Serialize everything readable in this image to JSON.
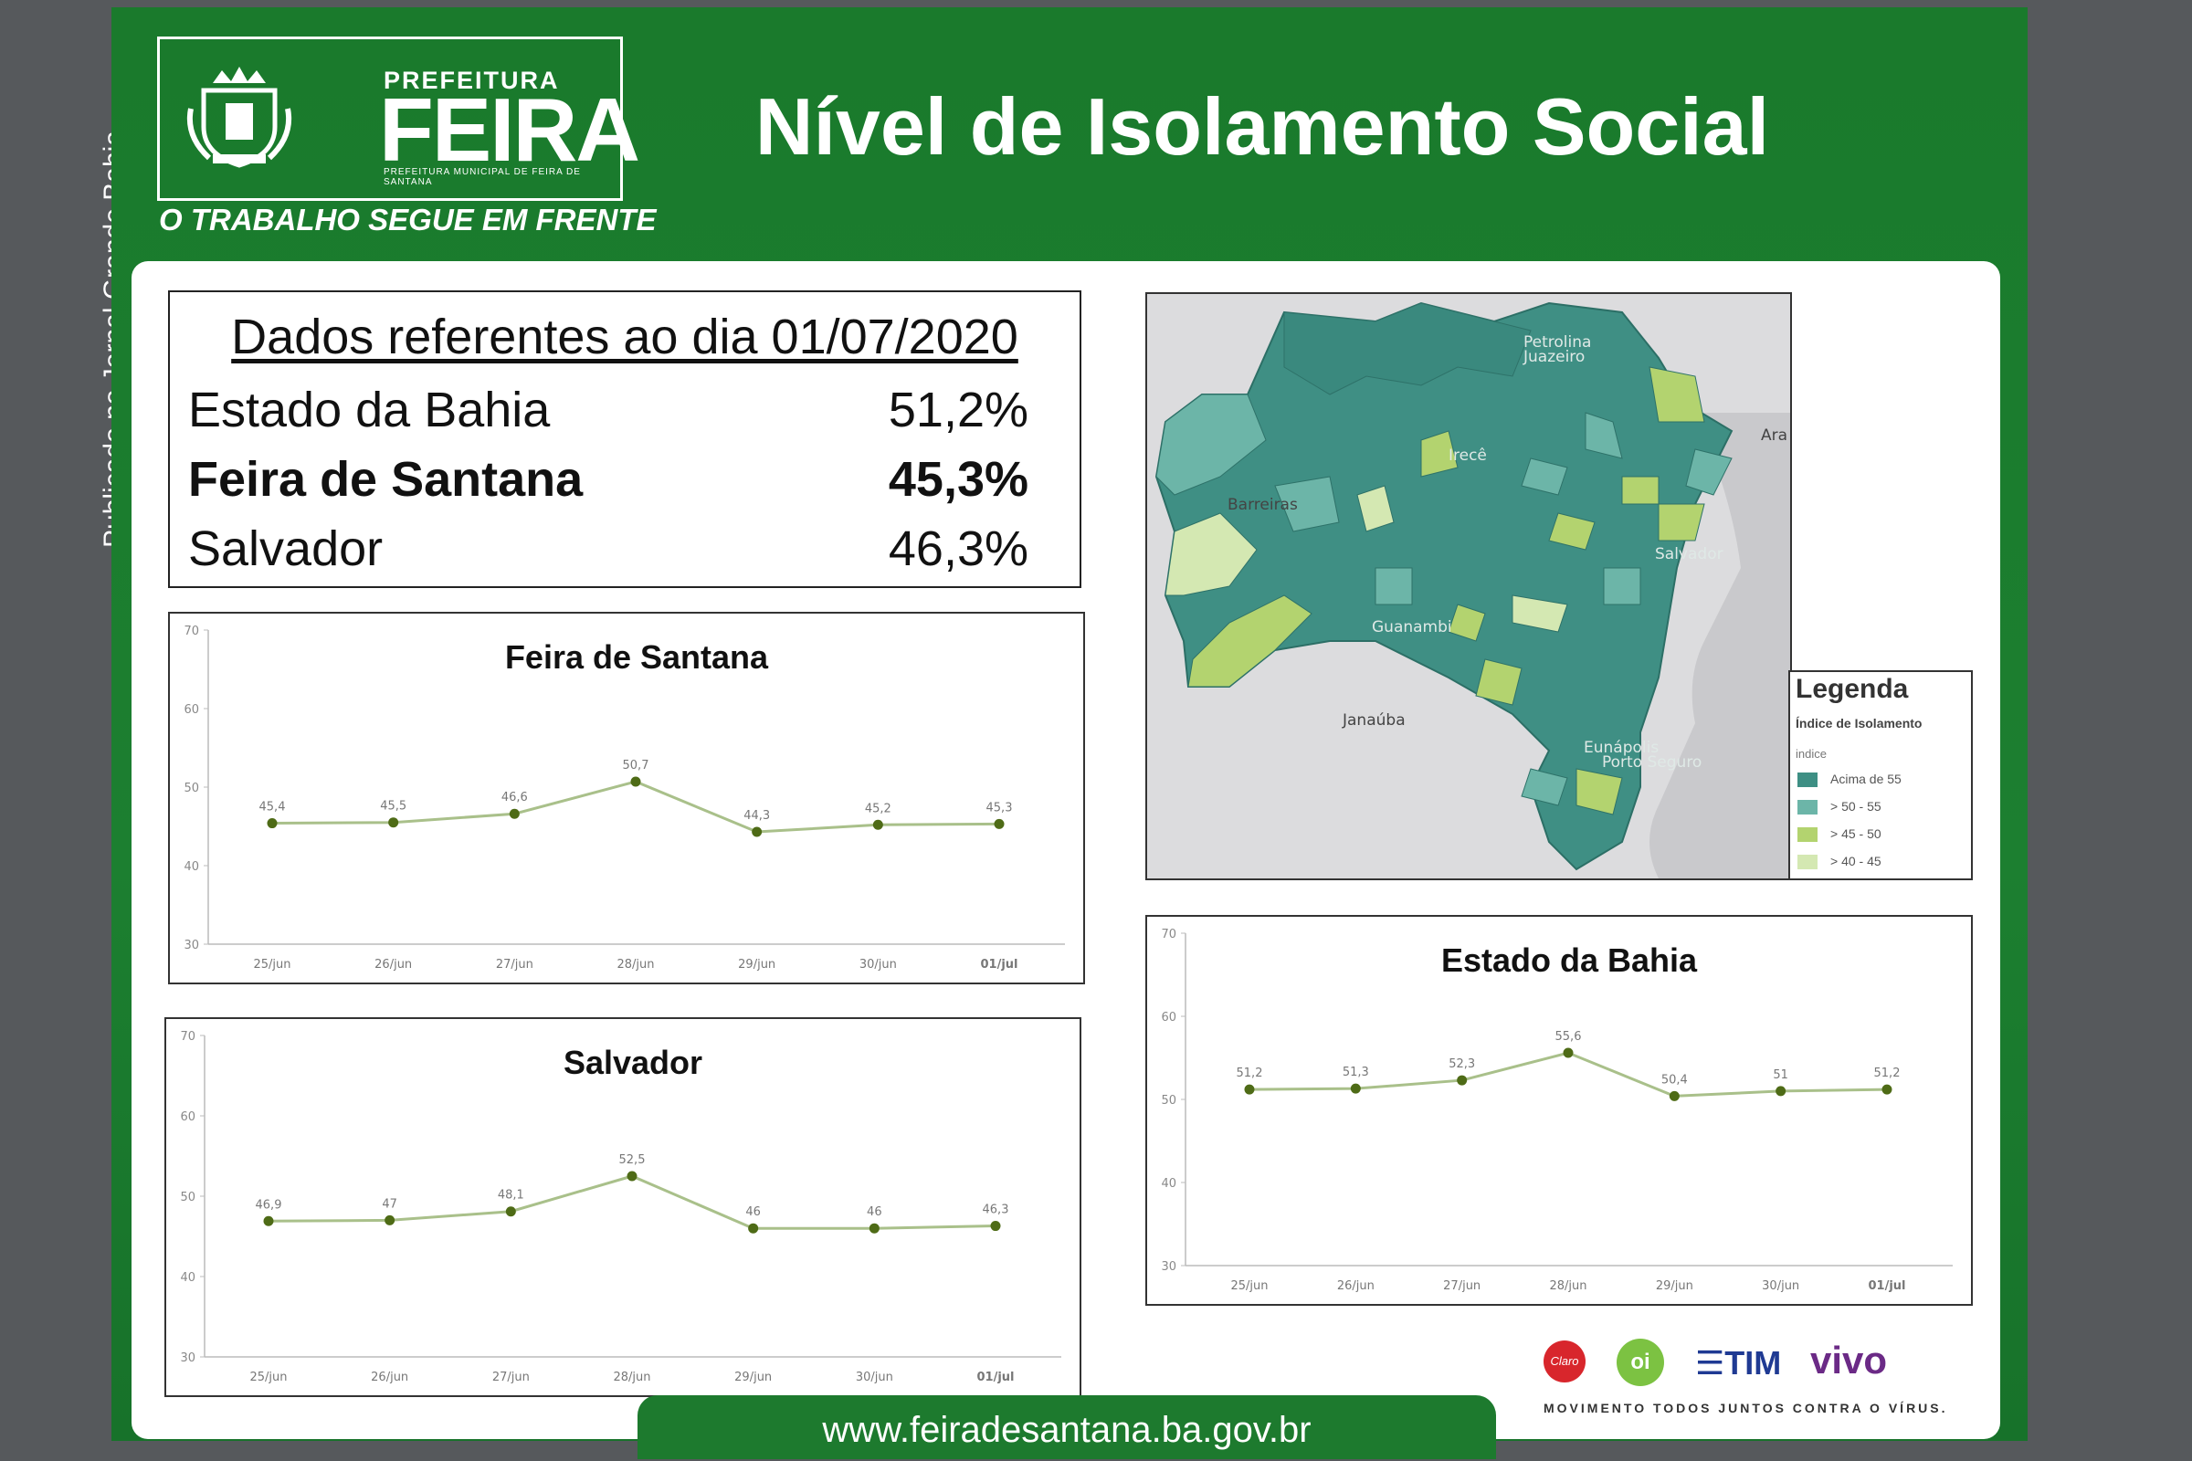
{
  "side_credit": "Publicado no Jornal Grande Bahia",
  "logo": {
    "top": "PREFEITURA",
    "main": "FEIRA",
    "small": "PREFEITURA MUNICIPAL DE FEIRA DE SANTANA",
    "slogan": "O TRABALHO SEGUE EM FRENTE"
  },
  "title": "Nível de Isolamento Social",
  "summary": {
    "date_label": "Dados referentes ao dia 01/07/2020",
    "rows": [
      {
        "name": "Estado da Bahia",
        "value": "51,2%"
      },
      {
        "name": "Feira de Santana",
        "value": "45,3%"
      },
      {
        "name": "Salvador",
        "value": "46,3%"
      }
    ]
  },
  "chart_data": [
    {
      "type": "line",
      "title": "Feira de Santana",
      "categories": [
        "25/jun",
        "26/jun",
        "27/jun",
        "28/jun",
        "29/jun",
        "30/jun",
        "01/jul"
      ],
      "values": [
        45.4,
        45.5,
        46.6,
        50.7,
        44.3,
        45.2,
        45.3
      ],
      "data_labels": [
        "45,4",
        "45,5",
        "46,6",
        "50,7",
        "44,3",
        "45,2",
        "45,3"
      ],
      "ylim": [
        30,
        70
      ],
      "yticks": [
        30,
        40,
        50,
        60,
        70
      ],
      "color": "#a9c08a",
      "marker_color": "#4e6b16"
    },
    {
      "type": "line",
      "title": "Salvador",
      "categories": [
        "25/jun",
        "26/jun",
        "27/jun",
        "28/jun",
        "29/jun",
        "30/jun",
        "01/jul"
      ],
      "values": [
        46.9,
        47,
        48.1,
        52.5,
        46,
        46,
        46.3
      ],
      "data_labels": [
        "46,9",
        "47",
        "48,1",
        "52,5",
        "46",
        "46",
        "46,3"
      ],
      "ylim": [
        30,
        70
      ],
      "yticks": [
        30,
        40,
        50,
        60,
        70
      ],
      "color": "#a9c08a",
      "marker_color": "#4e6b16"
    },
    {
      "type": "line",
      "title": "Estado da Bahia",
      "categories": [
        "25/jun",
        "26/jun",
        "27/jun",
        "28/jun",
        "29/jun",
        "30/jun",
        "01/jul"
      ],
      "values": [
        51.2,
        51.3,
        52.3,
        55.6,
        50.4,
        51,
        51.2
      ],
      "data_labels": [
        "51,2",
        "51,3",
        "52,3",
        "55,6",
        "50,4",
        "51",
        "51,2"
      ],
      "ylim": [
        30,
        70
      ],
      "yticks": [
        30,
        40,
        50,
        60,
        70
      ],
      "color": "#a9c08a",
      "marker_color": "#4e6b16"
    }
  ],
  "map": {
    "labels": [
      "Petrolina",
      "Juazeiro",
      "Irecê",
      "Barreiras",
      "Salvador",
      "Guanambi",
      "Janaúba",
      "Eunápolis",
      "Porto Seguro",
      "Ara"
    ],
    "legend": {
      "title": "Legenda",
      "subtitle": "Índice de Isolamento",
      "index_label": "indice",
      "items": [
        {
          "label": "Acima de 55",
          "color": "#3e8f84"
        },
        {
          "label": "> 50 - 55",
          "color": "#6cb5a8"
        },
        {
          "label": "> 45 - 50",
          "color": "#b3d36f"
        },
        {
          "label": "> 40 - 45",
          "color": "#d4e8b2"
        }
      ]
    }
  },
  "operators": {
    "claro": "Claro",
    "oi": "oi",
    "tim": "TIM",
    "vivo": "vivo",
    "slogan": "MOVIMENTO TODOS JUNTOS CONTRA O VÍRUS."
  },
  "footer_url": "www.feiradesantana.ba.gov.br"
}
